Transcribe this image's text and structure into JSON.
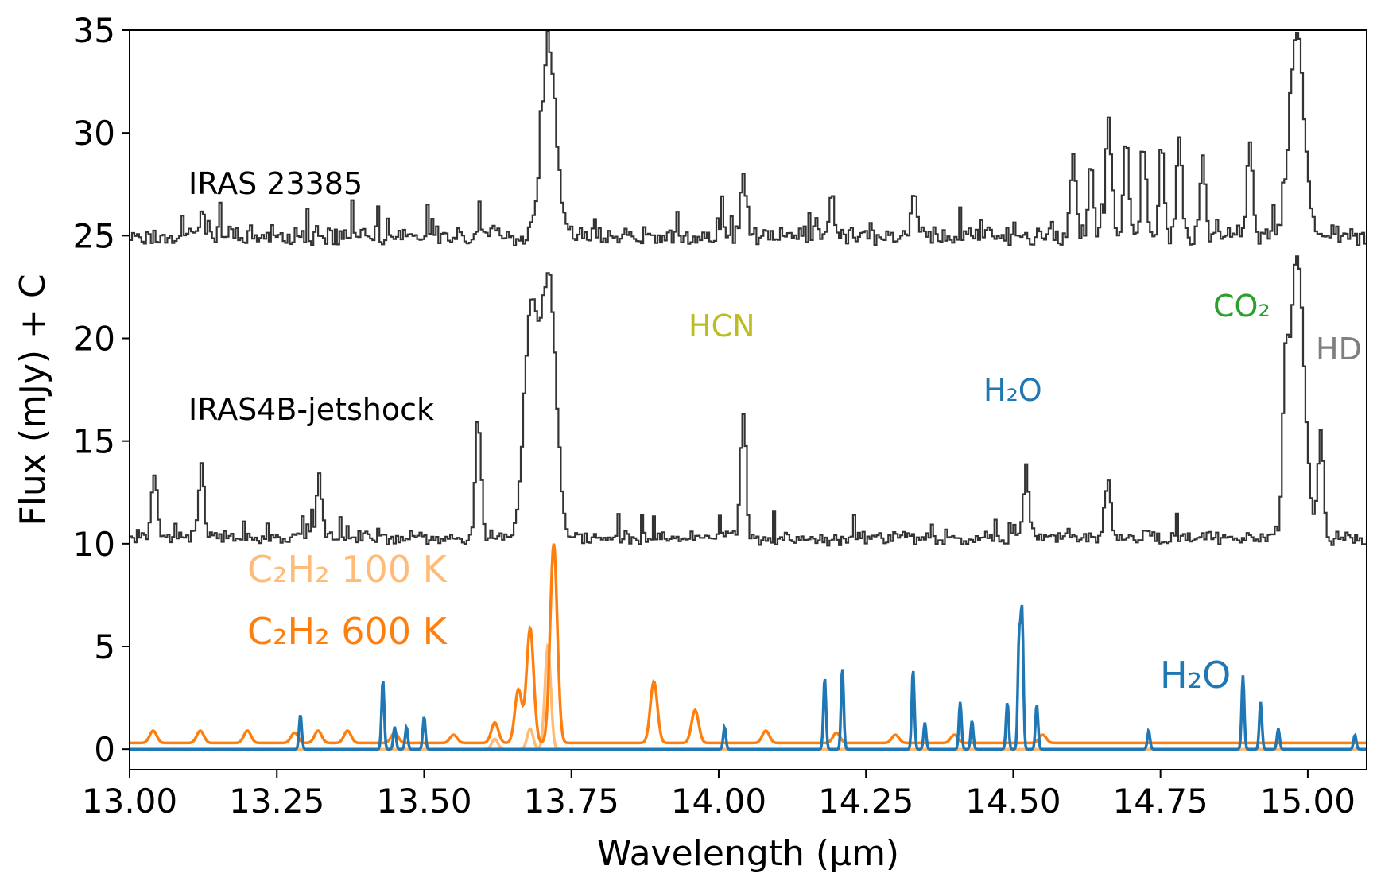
{
  "chart_data": {
    "type": "line",
    "xlabel": "Wavelength (μm)",
    "ylabel": "Flux (mJy) + C",
    "xlim": [
      13.0,
      15.1
    ],
    "ylim": [
      -1.0,
      35.0
    ],
    "xticks": [
      "13.00",
      "13.25",
      "13.50",
      "13.75",
      "14.00",
      "14.25",
      "14.50",
      "14.75",
      "15.00"
    ],
    "yticks": [
      "0",
      "5",
      "10",
      "15",
      "20",
      "25",
      "30",
      "35"
    ],
    "grid": false,
    "colors": {
      "observed": "#333333",
      "c2h2_100": "#ffbb78",
      "c2h2_600": "#ff7f0e",
      "h2o": "#1f77b4",
      "hcn": "#bcbd22",
      "co2": "#2ca02c",
      "hd": "#7f7f7f"
    },
    "series": [
      {
        "name": "IRAS 23385",
        "baseline": 25,
        "noise": 0.55,
        "peaks": [
          [
            13.12,
            1.2
          ],
          [
            13.71,
            9.0
          ],
          [
            14.04,
            2.8
          ],
          [
            14.19,
            1.8
          ],
          [
            14.33,
            2.0
          ],
          [
            14.6,
            4.0
          ],
          [
            14.63,
            3.5
          ],
          [
            14.66,
            5.5
          ],
          [
            14.69,
            4.5
          ],
          [
            14.72,
            4.0
          ],
          [
            14.75,
            4.5
          ],
          [
            14.78,
            5.0
          ],
          [
            14.82,
            3.8
          ],
          [
            14.9,
            4.8
          ],
          [
            14.98,
            10.0
          ]
        ]
      },
      {
        "name": "IRAS4B-jetshock",
        "baseline": 10.3,
        "noise": 0.4,
        "peaks": [
          [
            13.04,
            3.2
          ],
          [
            13.12,
            3.6
          ],
          [
            13.32,
            3.0
          ],
          [
            13.59,
            6.0
          ],
          [
            13.68,
            11.0
          ],
          [
            13.71,
            12.5
          ],
          [
            14.04,
            6.2
          ],
          [
            14.52,
            3.4
          ],
          [
            14.66,
            3.0
          ],
          [
            14.96,
            6.0
          ],
          [
            14.98,
            14.0
          ],
          [
            15.02,
            5.2
          ]
        ]
      },
      {
        "name": "C2H2 100 K",
        "baseline": 0.0,
        "peaks": [
          [
            13.62,
            0.5
          ],
          [
            13.68,
            1.0
          ],
          [
            13.71,
            5.0
          ]
        ]
      },
      {
        "name": "C2H2 600 K",
        "baseline": 0.3,
        "peaks": [
          [
            13.04,
            0.6
          ],
          [
            13.12,
            0.6
          ],
          [
            13.2,
            0.6
          ],
          [
            13.28,
            0.5
          ],
          [
            13.32,
            0.6
          ],
          [
            13.37,
            0.6
          ],
          [
            13.45,
            0.5
          ],
          [
            13.55,
            0.4
          ],
          [
            13.62,
            1.0
          ],
          [
            13.66,
            2.6
          ],
          [
            13.68,
            5.6
          ],
          [
            13.72,
            9.7
          ],
          [
            13.89,
            3.0
          ],
          [
            13.96,
            1.6
          ],
          [
            14.08,
            0.6
          ],
          [
            14.2,
            0.5
          ],
          [
            14.3,
            0.4
          ],
          [
            14.4,
            0.4
          ],
          [
            14.55,
            0.4
          ]
        ]
      },
      {
        "name": "H2O",
        "baseline": 0.0,
        "peaks": [
          [
            13.29,
            1.7
          ],
          [
            13.43,
            3.4
          ],
          [
            13.45,
            1.1
          ],
          [
            13.47,
            1.1
          ],
          [
            13.5,
            1.6
          ],
          [
            14.01,
            1.1
          ],
          [
            14.18,
            3.5
          ],
          [
            14.21,
            4.0
          ],
          [
            14.33,
            3.9
          ],
          [
            14.35,
            1.3
          ],
          [
            14.41,
            2.3
          ],
          [
            14.43,
            1.4
          ],
          [
            14.49,
            2.3
          ],
          [
            14.51,
            5.4
          ],
          [
            14.515,
            6.6
          ],
          [
            14.54,
            2.2
          ],
          [
            14.73,
            0.9
          ],
          [
            14.89,
            3.6
          ],
          [
            14.92,
            2.3
          ],
          [
            14.95,
            1.0
          ],
          [
            15.08,
            0.7
          ]
        ]
      }
    ],
    "annotations": [
      {
        "text": "IRAS 23385",
        "color": "#000000"
      },
      {
        "text": "IRAS4B-jetshock",
        "color": "#000000"
      },
      {
        "text": "HCN",
        "color": "#bcbd22"
      },
      {
        "text": "CO₂",
        "color": "#2ca02c"
      },
      {
        "text": "HD",
        "color": "#7f7f7f"
      },
      {
        "text": "H₂O",
        "color": "#1f77b4"
      },
      {
        "text": "C₂H₂ 100 K",
        "color": "#ffbb78"
      },
      {
        "text": "C₂H₂ 600 K",
        "color": "#ff7f0e"
      },
      {
        "text": "H₂O",
        "color": "#1f77b4"
      }
    ]
  }
}
